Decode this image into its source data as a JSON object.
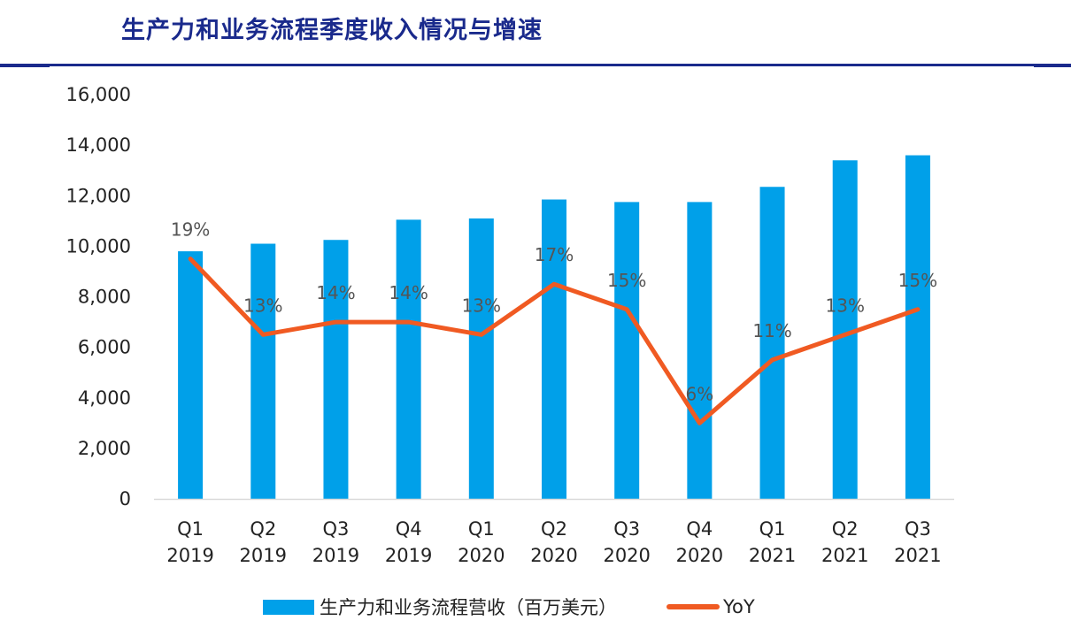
{
  "page": {
    "title": "生产力和业务流程季度收入情况与增速"
  },
  "colors": {
    "bar": "#00a0e9",
    "line": "#f05a22",
    "title": "#1a2a8c",
    "axis_text": "#222222",
    "label_text": "#555555"
  },
  "chart_data": {
    "type": "bar",
    "categories": [
      "Q1\n2019",
      "Q2\n2019",
      "Q3\n2019",
      "Q4\n2019",
      "Q1\n2020",
      "Q2\n2020",
      "Q3\n2020",
      "Q4\n2020",
      "Q1\n2021",
      "Q2\n2021",
      "Q3\n2021"
    ],
    "category_lines": [
      [
        "Q1",
        "2019"
      ],
      [
        "Q2",
        "2019"
      ],
      [
        "Q3",
        "2019"
      ],
      [
        "Q4",
        "2019"
      ],
      [
        "Q1",
        "2020"
      ],
      [
        "Q2",
        "2020"
      ],
      [
        "Q3",
        "2020"
      ],
      [
        "Q4",
        "2020"
      ],
      [
        "Q1",
        "2021"
      ],
      [
        "Q2",
        "2021"
      ],
      [
        "Q3",
        "2021"
      ]
    ],
    "series": [
      {
        "name": "生产力和业务流程营收（百万美元）",
        "type": "bar",
        "axis": "left",
        "values": [
          9800,
          10100,
          10250,
          11050,
          11100,
          11850,
          11750,
          11750,
          12350,
          13400,
          13600
        ]
      },
      {
        "name": "YoY",
        "type": "line",
        "axis": "right",
        "values": [
          19,
          13,
          14,
          14,
          13,
          17,
          15,
          6,
          11,
          13,
          15
        ],
        "labels": [
          "19%",
          "13%",
          "14%",
          "14%",
          "13%",
          "17%",
          "15%",
          "6%",
          "11%",
          "13%",
          "15%"
        ]
      }
    ],
    "ylim": [
      0,
      16000
    ],
    "yticks": [
      "0",
      "2,000",
      "4,000",
      "6,000",
      "8,000",
      "10,000",
      "12,000",
      "14,000",
      "16,000"
    ],
    "ytick_values": [
      0,
      2000,
      4000,
      6000,
      8000,
      10000,
      12000,
      14000,
      16000
    ],
    "y2lim": [
      0,
      32
    ],
    "y2_hidden": true,
    "grid": false,
    "legend_position": "bottom"
  },
  "legend": {
    "bar_label": "生产力和业务流程营收（百万美元）",
    "line_label": "YoY"
  }
}
